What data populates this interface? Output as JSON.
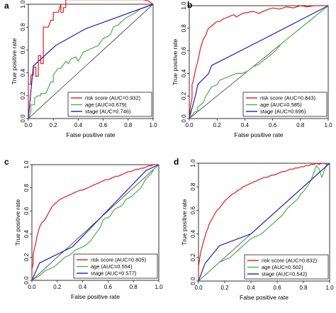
{
  "figure": {
    "xlabel": "False positive rate",
    "ylabel": "True positive rate"
  },
  "chart_data": [
    {
      "panel": "a",
      "type": "line",
      "xlabel": "False positive rate",
      "ylabel": "True positive rate",
      "xlim": [
        0,
        1
      ],
      "ylim": [
        0,
        1
      ],
      "x_ticks": [
        "0.0",
        "0.2",
        "0.4",
        "0.6",
        "0.8",
        "1.0"
      ],
      "y_ticks": [
        "0.0",
        "0.2",
        "0.4",
        "0.6",
        "0.8",
        "1.0"
      ],
      "legend_position": "bottom-right",
      "series": [
        {
          "name": "risk score (AUC=0.932)",
          "color": "#e41a1c",
          "x": [
            0,
            0,
            0.02,
            0.02,
            0.04,
            0.04,
            0.06,
            0.06,
            0.08,
            0.08,
            0.1,
            0.1,
            0.12,
            0.12,
            0.16,
            0.18,
            0.2,
            0.2,
            0.24,
            0.26,
            0.26,
            0.28,
            0.28,
            0.3,
            0.3,
            0.34,
            0.5,
            0.6,
            0.8,
            0.92,
            0.96,
            1
          ],
          "y": [
            0,
            0.3,
            0.3,
            0.38,
            0.38,
            0.45,
            0.45,
            0.37,
            0.37,
            0.55,
            0.55,
            0.48,
            0.48,
            0.8,
            0.8,
            0.86,
            0.86,
            0.93,
            0.93,
            1,
            0.93,
            0.93,
            0.97,
            0.97,
            1.04,
            1.04,
            1.04,
            1.04,
            1.04,
            1.04,
            1.03,
            1
          ]
        },
        {
          "name": "age (AUC=0.679)",
          "color": "#4daf4a",
          "x": [
            0,
            0.02,
            0.02,
            0.05,
            0.05,
            0.08,
            0.1,
            0.1,
            0.14,
            0.18,
            0.2,
            0.2,
            0.24,
            0.26,
            0.3,
            0.32,
            0.34,
            0.38,
            0.4,
            0.44,
            0.48,
            0.52,
            0.56,
            0.6,
            0.64,
            0.66,
            0.68,
            0.72,
            0.78,
            0.85,
            0.9,
            1
          ],
          "y": [
            0,
            0.05,
            0.12,
            0.12,
            0.18,
            0.2,
            0.2,
            0.22,
            0.22,
            0.32,
            0.32,
            0.38,
            0.44,
            0.44,
            0.5,
            0.48,
            0.52,
            0.54,
            0.5,
            0.58,
            0.6,
            0.62,
            0.64,
            0.7,
            0.72,
            0.74,
            0.8,
            0.82,
            0.88,
            0.92,
            0.96,
            1
          ]
        },
        {
          "name": "stage (AUC=0.746)",
          "color": "#1f1fbf",
          "x": [
            0,
            0.04,
            0.22,
            0.45,
            0.47,
            1
          ],
          "y": [
            0,
            0.46,
            0.64,
            0.78,
            0.79,
            1
          ]
        }
      ]
    },
    {
      "panel": "b",
      "type": "line",
      "xlabel": "False positive rate",
      "ylabel": "True positive rate",
      "xlim": [
        0,
        1
      ],
      "ylim": [
        0,
        1
      ],
      "x_ticks": [
        "0.0",
        "0.2",
        "0.4",
        "0.6",
        "0.8",
        "1.0"
      ],
      "y_ticks": [
        "0.0",
        "0.2",
        "0.4",
        "0.6",
        "0.8",
        "1.0"
      ],
      "legend_position": "bottom-right",
      "series": [
        {
          "name": "risk score (AUC=0.843)",
          "color": "#e41a1c",
          "x": [
            0,
            0.01,
            0.02,
            0.02,
            0.03,
            0.04,
            0.05,
            0.06,
            0.07,
            0.08,
            0.09,
            0.1,
            0.12,
            0.13,
            0.14,
            0.16,
            0.18,
            0.2,
            0.22,
            0.24,
            0.26,
            0.28,
            0.3,
            0.32,
            0.34,
            0.38,
            0.42,
            0.46,
            0.5,
            0.55,
            0.6,
            0.65,
            0.7,
            0.75,
            0.8,
            0.85,
            0.9,
            1
          ],
          "y": [
            0,
            0.12,
            0.18,
            0.3,
            0.34,
            0.4,
            0.46,
            0.5,
            0.56,
            0.62,
            0.66,
            0.7,
            0.74,
            0.78,
            0.8,
            0.82,
            0.84,
            0.86,
            0.86,
            0.88,
            0.89,
            0.9,
            0.91,
            0.92,
            0.9,
            0.93,
            0.94,
            0.95,
            0.93,
            0.96,
            0.98,
            0.97,
            0.99,
            0.98,
            1,
            0.99,
            1,
            1
          ]
        },
        {
          "name": "age (AUC=0.585)",
          "color": "#4daf4a",
          "x": [
            0,
            0.04,
            0.06,
            0.06,
            0.1,
            0.12,
            0.16,
            0.2,
            0.22,
            0.26,
            0.3,
            0.34,
            0.38,
            0.42,
            0.46,
            0.5,
            0.54,
            0.58,
            0.62,
            0.66,
            0.7,
            0.74,
            0.78,
            0.82,
            0.86,
            0.9,
            0.94,
            1
          ],
          "y": [
            0,
            0.06,
            0.06,
            0.1,
            0.14,
            0.2,
            0.28,
            0.3,
            0.34,
            0.36,
            0.38,
            0.4,
            0.4,
            0.42,
            0.46,
            0.48,
            0.52,
            0.56,
            0.6,
            0.66,
            0.7,
            0.74,
            0.78,
            0.82,
            0.86,
            0.9,
            0.94,
            1
          ]
        },
        {
          "name": "stage (AUC=0.696)",
          "color": "#1f1fbf",
          "x": [
            0,
            0.05,
            0.06,
            0.14,
            0.16,
            0.56,
            1
          ],
          "y": [
            0,
            0.23,
            0.3,
            0.4,
            0.47,
            0.72,
            1
          ]
        }
      ]
    },
    {
      "panel": "c",
      "type": "line",
      "xlabel": "False positive rate",
      "ylabel": "True positive rate",
      "xlim": [
        0,
        1
      ],
      "ylim": [
        0,
        1
      ],
      "x_ticks": [
        "0.0",
        "0.2",
        "0.4",
        "0.6",
        "0.8",
        "1.0"
      ],
      "y_ticks": [
        "0.0",
        "0.2",
        "0.4",
        "0.6",
        "0.8",
        "1.0"
      ],
      "legend_position": "bottom-right",
      "series": [
        {
          "name": "risk score (AUC=0.805)",
          "color": "#e41a1c",
          "x": [
            0,
            0,
            0.01,
            0.01,
            0.02,
            0.03,
            0.04,
            0.05,
            0.06,
            0.07,
            0.08,
            0.1,
            0.12,
            0.14,
            0.16,
            0.18,
            0.2,
            0.22,
            0.24,
            0.26,
            0.28,
            0.3,
            0.32,
            0.34,
            0.36,
            0.38,
            0.4,
            0.42,
            0.44,
            0.46,
            0.48,
            0.5,
            0.52,
            0.54,
            0.56,
            0.58,
            0.6,
            0.62,
            0.64,
            0.66,
            0.68,
            0.7,
            0.72,
            0.74,
            0.76,
            0.78,
            0.8,
            0.82,
            0.84,
            0.86,
            0.88,
            0.9,
            0.92,
            0.94,
            0.96,
            1
          ],
          "y": [
            0,
            0.1,
            0.14,
            0.22,
            0.28,
            0.32,
            0.38,
            0.42,
            0.46,
            0.48,
            0.5,
            0.52,
            0.56,
            0.6,
            0.64,
            0.66,
            0.68,
            0.7,
            0.71,
            0.72,
            0.73,
            0.74,
            0.75,
            0.76,
            0.77,
            0.78,
            0.78,
            0.79,
            0.8,
            0.81,
            0.82,
            0.83,
            0.84,
            0.85,
            0.86,
            0.87,
            0.87,
            0.88,
            0.89,
            0.9,
            0.9,
            0.91,
            0.92,
            0.93,
            0.94,
            0.94,
            0.95,
            0.96,
            0.96,
            0.97,
            0.97,
            0.98,
            0.99,
            0.99,
            1,
            1
          ]
        },
        {
          "name": "age (AUC=0.554)",
          "color": "#4daf4a",
          "x": [
            0,
            0.06,
            0.1,
            0.14,
            0.18,
            0.22,
            0.26,
            0.3,
            0.34,
            0.38,
            0.42,
            0.46,
            0.5,
            0.54,
            0.56,
            0.58,
            0.6,
            0.62,
            0.64,
            0.66,
            0.7,
            0.72,
            0.74,
            0.78,
            0.82,
            0.86,
            0.88,
            0.9,
            0.94,
            0.96,
            1
          ],
          "y": [
            0,
            0.04,
            0.08,
            0.1,
            0.12,
            0.16,
            0.2,
            0.22,
            0.26,
            0.28,
            0.3,
            0.34,
            0.4,
            0.46,
            0.52,
            0.54,
            0.54,
            0.56,
            0.6,
            0.62,
            0.64,
            0.66,
            0.7,
            0.72,
            0.76,
            0.8,
            0.84,
            0.88,
            0.92,
            0.96,
            1
          ]
        },
        {
          "name": "stage (AUC=0.577)",
          "color": "#1f1fbf",
          "x": [
            0,
            0.06,
            0.32,
            0.9,
            1
          ],
          "y": [
            0,
            0.15,
            0.29,
            0.95,
            1
          ]
        }
      ]
    },
    {
      "panel": "d",
      "type": "line",
      "xlabel": "False positive rate",
      "ylabel": "True positive rate",
      "xlim": [
        0,
        1
      ],
      "ylim": [
        0,
        1
      ],
      "x_ticks": [
        "0.0",
        "0.2",
        "0.4",
        "0.6",
        "0.8",
        "1.0"
      ],
      "y_ticks": [
        "0.0",
        "0.2",
        "0.4",
        "0.6",
        "0.8",
        "1.0"
      ],
      "legend_position": "bottom-right",
      "series": [
        {
          "name": "risk score (AUC=0.832)",
          "color": "#e41a1c",
          "x": [
            0,
            0,
            0.01,
            0.02,
            0.03,
            0.04,
            0.05,
            0.06,
            0.07,
            0.08,
            0.1,
            0.12,
            0.14,
            0.16,
            0.18,
            0.2,
            0.22,
            0.24,
            0.26,
            0.28,
            0.3,
            0.32,
            0.34,
            0.36,
            0.38,
            0.4,
            0.42,
            0.44,
            0.46,
            0.48,
            0.5,
            0.52,
            0.54,
            0.56,
            0.58,
            0.6,
            0.62,
            0.64,
            0.66,
            0.68,
            0.7,
            0.72,
            0.74,
            0.76,
            0.78,
            0.8,
            0.82,
            0.84,
            0.86,
            0.88,
            0.9,
            0.92,
            0.94,
            0.96,
            0.98,
            1
          ],
          "y": [
            0,
            0.12,
            0.2,
            0.26,
            0.3,
            0.34,
            0.38,
            0.42,
            0.44,
            0.48,
            0.52,
            0.56,
            0.6,
            0.62,
            0.65,
            0.68,
            0.7,
            0.72,
            0.74,
            0.75,
            0.77,
            0.78,
            0.8,
            0.81,
            0.82,
            0.83,
            0.84,
            0.85,
            0.86,
            0.87,
            0.88,
            0.88,
            0.89,
            0.9,
            0.9,
            0.91,
            0.92,
            0.93,
            0.93,
            0.94,
            0.95,
            0.95,
            0.96,
            0.96,
            0.97,
            0.97,
            0.98,
            0.98,
            0.99,
            0.99,
            1,
            0.99,
            1,
            1,
            0.99,
            1
          ]
        },
        {
          "name": "age (AUC=0.502)",
          "color": "#4daf4a",
          "x": [
            0,
            0.04,
            0.08,
            0.12,
            0.16,
            0.2,
            0.24,
            0.28,
            0.32,
            0.36,
            0.4,
            0.44,
            0.48,
            0.52,
            0.56,
            0.6,
            0.64,
            0.68,
            0.72,
            0.76,
            0.78,
            0.8,
            0.84,
            0.86,
            0.88,
            0.9,
            0.92,
            0.94,
            0.96,
            0.98,
            1
          ],
          "y": [
            0,
            0.04,
            0.08,
            0.12,
            0.16,
            0.18,
            0.2,
            0.24,
            0.28,
            0.32,
            0.36,
            0.38,
            0.4,
            0.44,
            0.48,
            0.52,
            0.56,
            0.62,
            0.66,
            0.7,
            0.74,
            0.76,
            0.82,
            0.86,
            0.92,
            0.98,
            0.95,
            0.88,
            0.94,
            1,
            1
          ]
        },
        {
          "name": "stage (AUC=0.542)",
          "color": "#1f1fbf",
          "x": [
            0,
            0.05,
            0.16,
            0.4,
            0.98,
            1
          ],
          "y": [
            0,
            0.15,
            0.3,
            0.4,
            0.98,
            1
          ]
        }
      ]
    }
  ]
}
